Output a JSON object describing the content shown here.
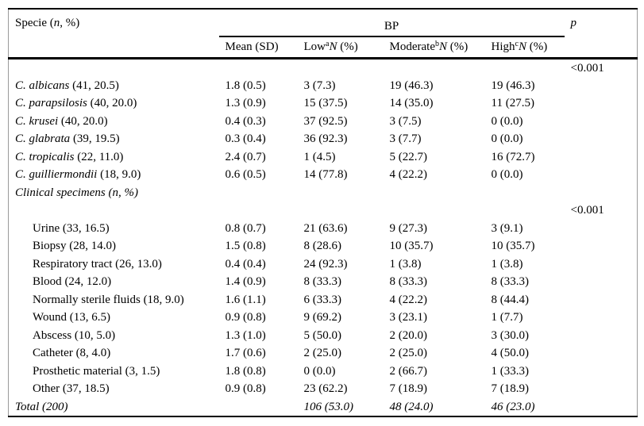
{
  "colors": {
    "text": "#000000",
    "background": "#ffffff",
    "rule": "#000000",
    "edge_line": "#9a9a9a"
  },
  "table": {
    "header": {
      "specie": {
        "prefix": "Specie (",
        "n": "n",
        "suffix": ", %)"
      },
      "bp_group": "BP",
      "p": "p",
      "mean": "Mean (SD)",
      "low": {
        "label": "Low",
        "sup": "a",
        "n": "N",
        "suffix": " (%)"
      },
      "moderate": {
        "label": "Moderate",
        "sup": "b",
        "n": "N",
        "suffix": " (%)"
      },
      "high": {
        "label": "High",
        "sup": "c",
        "n": "N",
        "suffix": " (%)"
      }
    },
    "rows": [
      {
        "type": "p-only",
        "p": "<0.001"
      },
      {
        "type": "species",
        "name": "C. albicans",
        "paren": "(41, 20.5)",
        "mean": "1.8 (0.5)",
        "low": "3 (7.3)",
        "moderate": "19 (46.3)",
        "high": "19 (46.3)",
        "p": ""
      },
      {
        "type": "species",
        "name": "C. parapsilosis",
        "paren": "(40, 20.0)",
        "mean": "1.3 (0.9)",
        "low": "15 (37.5)",
        "moderate": "14 (35.0)",
        "high": "11 (27.5)",
        "p": ""
      },
      {
        "type": "species",
        "name": "C. krusei",
        "paren": "(40, 20.0)",
        "mean": "0.4 (0.3)",
        "low": "37 (92.5)",
        "moderate": "3 (7.5)",
        "high": "0 (0.0)",
        "p": ""
      },
      {
        "type": "species",
        "name": "C. glabrata",
        "paren": "(39, 19.5)",
        "mean": "0.3 (0.4)",
        "low": "36 (92.3)",
        "moderate": "3 (7.7)",
        "high": "0 (0.0)",
        "p": ""
      },
      {
        "type": "species",
        "name": "C. tropicalis",
        "paren": "(22, 11.0)",
        "mean": "2.4 (0.7)",
        "low": "1 (4.5)",
        "moderate": "5 (22.7)",
        "high": "16 (72.7)",
        "p": ""
      },
      {
        "type": "species",
        "name": "C. guilliermondii",
        "paren": "(18, 9.0)",
        "mean": "0.6 (0.5)",
        "low": "14 (77.8)",
        "moderate": "4 (22.2)",
        "high": "0 (0.0)",
        "p": ""
      },
      {
        "type": "section",
        "name": "Clinical specimens (n, %)",
        "paren": "",
        "mean": "",
        "low": "",
        "moderate": "",
        "high": "",
        "p": ""
      },
      {
        "type": "p-only",
        "p": "<0.001"
      },
      {
        "type": "indent",
        "name": "Urine",
        "paren": "(33, 16.5)",
        "mean": "0.8 (0.7)",
        "low": "21 (63.6)",
        "moderate": "9 (27.3)",
        "high": "3 (9.1)",
        "p": ""
      },
      {
        "type": "indent",
        "name": "Biopsy",
        "paren": "(28, 14.0)",
        "mean": "1.5 (0.8)",
        "low": "8 (28.6)",
        "moderate": "10 (35.7)",
        "high": "10 (35.7)",
        "p": ""
      },
      {
        "type": "indent",
        "name": "Respiratory tract",
        "paren": "(26, 13.0)",
        "mean": "0.4 (0.4)",
        "low": "24 (92.3)",
        "moderate": "1 (3.8)",
        "high": "1 (3.8)",
        "p": ""
      },
      {
        "type": "indent",
        "name": "Blood",
        "paren": "(24, 12.0)",
        "mean": "1.4 (0.9)",
        "low": "8 (33.3)",
        "moderate": "8 (33.3)",
        "high": "8 (33.3)",
        "p": ""
      },
      {
        "type": "indent",
        "name": "Normally sterile fluids",
        "paren": "(18, 9.0)",
        "mean": "1.6 (1.1)",
        "low": "6 (33.3)",
        "moderate": "4 (22.2)",
        "high": "8 (44.4)",
        "p": ""
      },
      {
        "type": "indent",
        "name": "Wound",
        "paren": "(13, 6.5)",
        "mean": "0.9 (0.8)",
        "low": "9 (69.2)",
        "moderate": "3 (23.1)",
        "high": "1 (7.7)",
        "p": ""
      },
      {
        "type": "indent",
        "name": "Abscess",
        "paren": "(10, 5.0)",
        "mean": "1.3 (1.0)",
        "low": "5 (50.0)",
        "moderate": "2 (20.0)",
        "high": "3 (30.0)",
        "p": ""
      },
      {
        "type": "indent",
        "name": "Catheter",
        "paren": "(8, 4.0)",
        "mean": "1.7 (0.6)",
        "low": "2 (25.0)",
        "moderate": "2 (25.0)",
        "high": "4 (50.0)",
        "p": ""
      },
      {
        "type": "indent",
        "name": "Prosthetic material",
        "paren": "(3, 1.5)",
        "mean": "1.8 (0.8)",
        "low": "0 (0.0)",
        "moderate": "2 (66.7)",
        "high": "1 (33.3)",
        "p": ""
      },
      {
        "type": "indent",
        "name": "Other",
        "paren": "(37, 18.5)",
        "mean": "0.9 (0.8)",
        "low": "23 (62.2)",
        "moderate": "7 (18.9)",
        "high": "7 (18.9)",
        "p": ""
      },
      {
        "type": "total",
        "name": "Total (200)",
        "paren": "",
        "mean": "",
        "low": "106 (53.0)",
        "moderate": "48 (24.0)",
        "high": "46 (23.0)",
        "p": ""
      }
    ]
  }
}
